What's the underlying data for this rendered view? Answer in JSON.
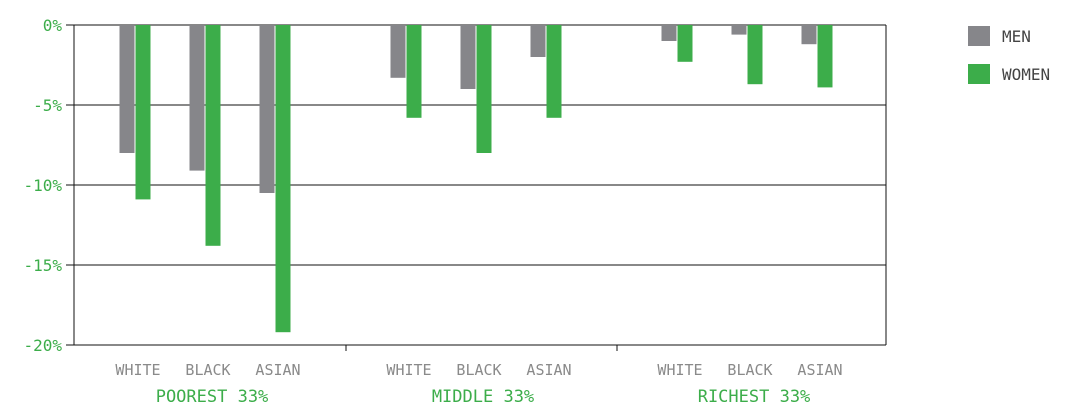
{
  "colors": {
    "men": "#86868a",
    "women": "#3cad4a",
    "axis_text": "#3cad4a",
    "category_text": "#8a8a8a",
    "axis_line": "#111111",
    "grid_line": "#111111"
  },
  "legend": {
    "men_label": "MEN",
    "women_label": "WOMEN"
  },
  "chart_data": {
    "type": "bar",
    "title": "",
    "xlabel": "",
    "ylabel": "",
    "ylim": [
      -20,
      0
    ],
    "yticks": [
      0,
      -5,
      -10,
      -15,
      -20
    ],
    "ytick_labels": [
      "0%",
      "-5%",
      "-10%",
      "-15%",
      "-20%"
    ],
    "grid": true,
    "legend_position": "top-right",
    "groups": [
      {
        "label": "POOREST 33%",
        "categories": [
          "WHITE",
          "BLACK",
          "ASIAN"
        ]
      },
      {
        "label": "MIDDLE 33%",
        "categories": [
          "WHITE",
          "BLACK",
          "ASIAN"
        ]
      },
      {
        "label": "RICHEST 33%",
        "categories": [
          "WHITE",
          "BLACK",
          "ASIAN"
        ]
      }
    ],
    "series": [
      {
        "name": "MEN",
        "values": [
          -8.0,
          -9.1,
          -10.5,
          -3.3,
          -4.0,
          -2.0,
          -1.0,
          -0.6,
          -1.2
        ]
      },
      {
        "name": "WOMEN",
        "values": [
          -10.9,
          -13.8,
          -19.2,
          -5.8,
          -8.0,
          -5.8,
          -2.3,
          -3.7,
          -3.9
        ]
      }
    ]
  }
}
